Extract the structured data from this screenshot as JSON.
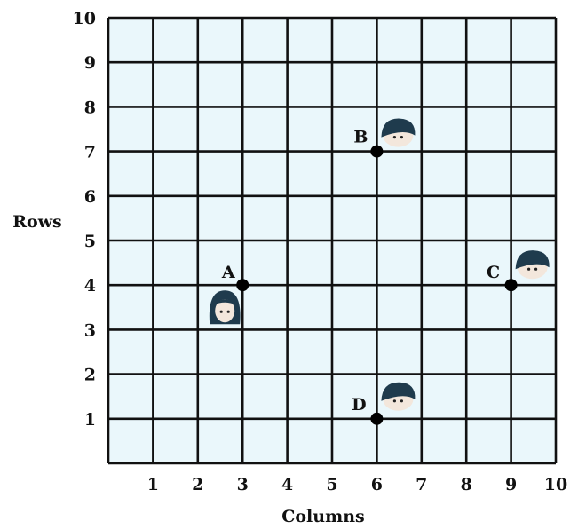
{
  "chart_data": {
    "type": "scatter",
    "xlabel": "Columns",
    "ylabel": "Rows",
    "x_ticks": [
      "1",
      "2",
      "3",
      "4",
      "5",
      "6",
      "7",
      "8",
      "9",
      "10"
    ],
    "y_ticks": [
      "1",
      "2",
      "3",
      "4",
      "5",
      "6",
      "7",
      "8",
      "9",
      "10"
    ],
    "xlim": [
      0,
      10
    ],
    "ylim": [
      0,
      10
    ],
    "grid": true,
    "points": [
      {
        "label": "A",
        "x": 3,
        "y": 4,
        "figure": "girl-face-icon"
      },
      {
        "label": "B",
        "x": 6,
        "y": 7,
        "figure": "boy-face-icon"
      },
      {
        "label": "C",
        "x": 9,
        "y": 4,
        "figure": "boy-face-icon"
      },
      {
        "label": "D",
        "x": 6,
        "y": 1,
        "figure": "boy-face-icon"
      }
    ],
    "colors": {
      "grid_fill": "#eaf7fb",
      "grid_line": "#111111",
      "point": "#000000",
      "hair": "#1f3b4d",
      "skin": "#f3e7dc"
    }
  }
}
